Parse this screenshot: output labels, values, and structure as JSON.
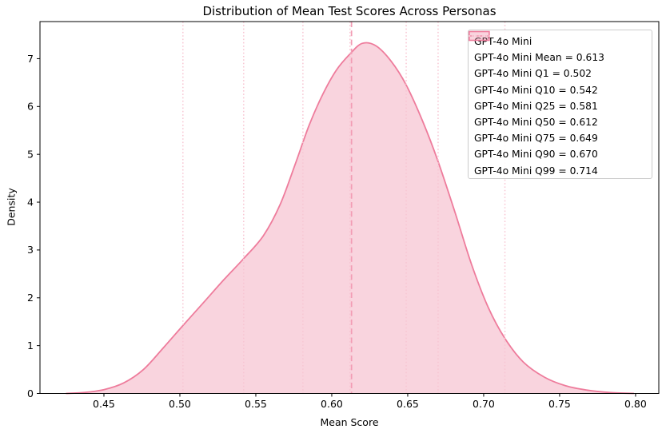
{
  "chart_data": {
    "type": "area",
    "subtype": "kde-density",
    "title": "Distribution of Mean Test Scores Across Personas",
    "xlabel": "Mean Score",
    "ylabel": "Density",
    "xlim": [
      0.4079,
      0.8153
    ],
    "ylim": [
      0,
      7.776
    ],
    "xticks": [
      0.45,
      0.5,
      0.55,
      0.6,
      0.65,
      0.7,
      0.75,
      0.8
    ],
    "xtick_labels": [
      "0.45",
      "0.50",
      "0.55",
      "0.60",
      "0.65",
      "0.70",
      "0.75",
      "0.80"
    ],
    "yticks": [
      0,
      1,
      2,
      3,
      4,
      5,
      6,
      7
    ],
    "ytick_labels": [
      "0",
      "1",
      "2",
      "3",
      "4",
      "5",
      "6",
      "7"
    ],
    "grid": false,
    "legend_position": "upper right",
    "colors": {
      "line": "#ee7c9c",
      "fill": "#ee7c9c",
      "fill_alpha": 0.33,
      "mean_line": "#f29cb4",
      "quantile_line": "#f8c6d3",
      "spine": "#000000",
      "text": "#000000",
      "legend_border": "#cccccc"
    },
    "series": [
      {
        "name": "GPT-4o Mini",
        "points": [
          [
            0.425,
            0.0
          ],
          [
            0.437,
            0.02
          ],
          [
            0.45,
            0.08
          ],
          [
            0.463,
            0.22
          ],
          [
            0.476,
            0.5
          ],
          [
            0.489,
            0.95
          ],
          [
            0.502,
            1.42
          ],
          [
            0.515,
            1.88
          ],
          [
            0.529,
            2.38
          ],
          [
            0.542,
            2.82
          ],
          [
            0.555,
            3.3
          ],
          [
            0.566,
            3.95
          ],
          [
            0.576,
            4.8
          ],
          [
            0.585,
            5.6
          ],
          [
            0.594,
            6.25
          ],
          [
            0.603,
            6.76
          ],
          [
            0.612,
            7.1
          ],
          [
            0.62,
            7.32
          ],
          [
            0.629,
            7.27
          ],
          [
            0.639,
            6.95
          ],
          [
            0.649,
            6.45
          ],
          [
            0.66,
            5.68
          ],
          [
            0.67,
            4.85
          ],
          [
            0.681,
            3.8
          ],
          [
            0.692,
            2.7
          ],
          [
            0.703,
            1.8
          ],
          [
            0.714,
            1.15
          ],
          [
            0.726,
            0.66
          ],
          [
            0.74,
            0.34
          ],
          [
            0.754,
            0.16
          ],
          [
            0.768,
            0.07
          ],
          [
            0.783,
            0.02
          ],
          [
            0.799,
            0.0
          ]
        ]
      }
    ],
    "stats": {
      "mean": 0.613,
      "q1": 0.502,
      "q10": 0.542,
      "q25": 0.581,
      "q50": 0.612,
      "q75": 0.649,
      "q90": 0.67,
      "q99": 0.714
    },
    "vlines": [
      {
        "x": 0.502,
        "style": "dotted",
        "color": "#f8c6d3"
      },
      {
        "x": 0.542,
        "style": "dotted",
        "color": "#f8c6d3"
      },
      {
        "x": 0.581,
        "style": "dotted",
        "color": "#f8c6d3"
      },
      {
        "x": 0.612,
        "style": "dotted",
        "color": "#f8c6d3"
      },
      {
        "x": 0.649,
        "style": "dotted",
        "color": "#f8c6d3"
      },
      {
        "x": 0.67,
        "style": "dotted",
        "color": "#f8c6d3"
      },
      {
        "x": 0.714,
        "style": "dotted",
        "color": "#f8c6d3"
      },
      {
        "x": 0.613,
        "style": "dashed",
        "color": "#f29cb4"
      }
    ],
    "legend": {
      "items": [
        {
          "swatch": "patch",
          "label": "GPT-4o Mini"
        },
        {
          "swatch": "dashed",
          "label": "GPT-4o Mini Mean = 0.613"
        },
        {
          "swatch": "dotted",
          "label": "GPT-4o Mini Q1 = 0.502"
        },
        {
          "swatch": "dotted",
          "label": "GPT-4o Mini Q10 = 0.542"
        },
        {
          "swatch": "dotted",
          "label": "GPT-4o Mini Q25 = 0.581"
        },
        {
          "swatch": "dotted",
          "label": "GPT-4o Mini Q50 = 0.612"
        },
        {
          "swatch": "dotted",
          "label": "GPT-4o Mini Q75 = 0.649"
        },
        {
          "swatch": "dotted",
          "label": "GPT-4o Mini Q90 = 0.670"
        },
        {
          "swatch": "dotted",
          "label": "GPT-4o Mini Q99 = 0.714"
        }
      ]
    }
  }
}
